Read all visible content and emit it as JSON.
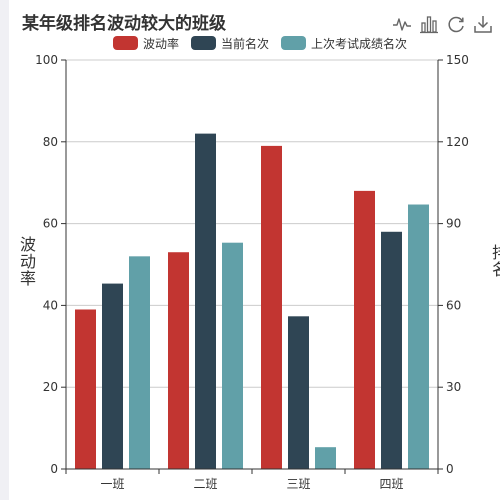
{
  "title": "某年级排名波动较大的班级",
  "toolbox": {
    "icons": [
      "line-chart-icon",
      "bar-chart-icon",
      "restore-icon",
      "download-icon"
    ]
  },
  "colors": {
    "wave": "#c23531",
    "current": "#2f4554",
    "last": "#61a0a8",
    "axis": "#333333",
    "grid": "#cccccc"
  },
  "chart_data": {
    "type": "bar",
    "title": "某年级排名波动较大的班级",
    "categories": [
      "一班",
      "二班",
      "三班",
      "四班"
    ],
    "series": [
      {
        "name": "波动率",
        "values": [
          39,
          53,
          79,
          68
        ],
        "axis": "left"
      },
      {
        "name": "当前名次",
        "values": [
          68,
          123,
          56,
          87
        ],
        "axis": "right"
      },
      {
        "name": "上次考试成绩名次",
        "values": [
          78,
          83,
          8,
          97
        ],
        "axis": "right"
      }
    ],
    "y_left": {
      "label": "波动率",
      "ylim": [
        0,
        100
      ],
      "ticks": [
        0,
        20,
        40,
        60,
        80,
        100
      ]
    },
    "y_right": {
      "label": "排名",
      "ylim": [
        0,
        150
      ],
      "ticks": [
        0,
        30,
        60,
        90,
        120,
        150
      ]
    },
    "legend_position": "top-center",
    "grid": true
  }
}
